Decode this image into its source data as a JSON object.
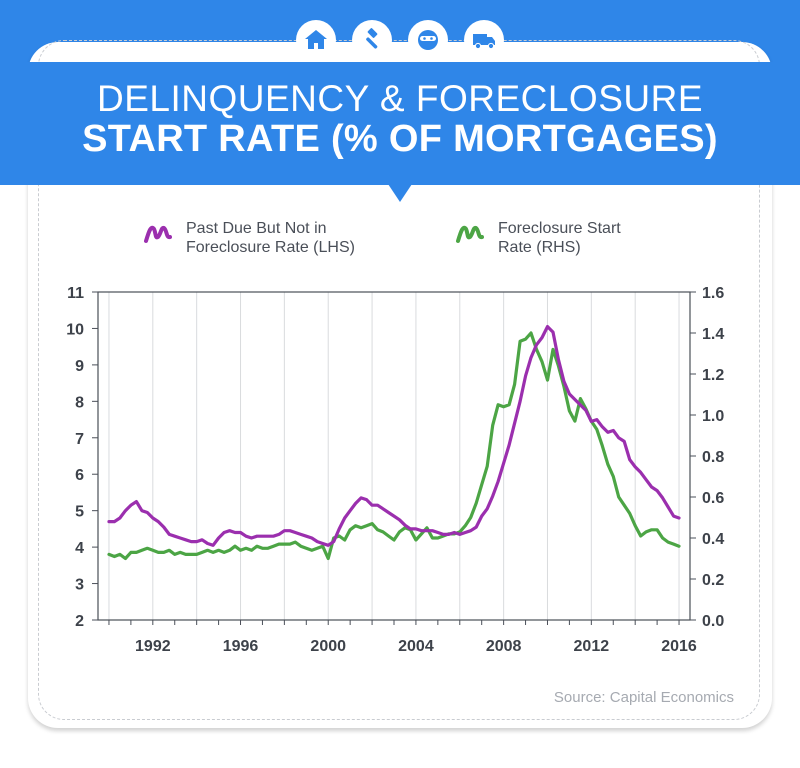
{
  "header": {
    "title_line1": "DELINQUENCY & FORECLOSURE",
    "title_line2": "START RATE (% OF MORTGAGES)",
    "icons": [
      "house-icon",
      "gavel-icon",
      "robber-mask-icon",
      "moving-truck-icon"
    ],
    "background_color": "#2f86e8"
  },
  "legend": {
    "past_due_label": "Past Due But Not in Foreclosure Rate (LHS)",
    "foreclosure_label": "Foreclosure Start Rate (RHS)"
  },
  "source": "Source: Capital Economics",
  "chart_data": {
    "type": "line",
    "title": "DELINQUENCY & FORECLOSURE START RATE (% OF MORTGAGES)",
    "x_range": [
      1989.5,
      2016.5
    ],
    "x_ticks": [
      "1992",
      "1996",
      "2000",
      "2004",
      "2008",
      "2012",
      "2016"
    ],
    "y_left": {
      "range": [
        2,
        11
      ],
      "ticks": [
        "2",
        "3",
        "4",
        "5",
        "6",
        "7",
        "8",
        "9",
        "10",
        "11"
      ]
    },
    "y_right": {
      "range": [
        0,
        1.6
      ],
      "ticks": [
        "0.0",
        "0.2",
        "0.4",
        "0.6",
        "0.8",
        "1.0",
        "1.2",
        "1.4",
        "1.6"
      ]
    },
    "grid": "vertical",
    "legend_position": "top",
    "series": [
      {
        "name": "Past Due But Not in Foreclosure Rate (LHS)",
        "axis": "left",
        "color": "#9b2fae",
        "x": [
          1990.0,
          1990.25,
          1990.5,
          1990.75,
          1991.0,
          1991.25,
          1991.5,
          1991.75,
          1992.0,
          1992.25,
          1992.5,
          1992.75,
          1993.0,
          1993.25,
          1993.5,
          1993.75,
          1994.0,
          1994.25,
          1994.5,
          1994.75,
          1995.0,
          1995.25,
          1995.5,
          1995.75,
          1996.0,
          1996.25,
          1996.5,
          1996.75,
          1997.0,
          1997.25,
          1997.5,
          1997.75,
          1998.0,
          1998.25,
          1998.5,
          1998.75,
          1999.0,
          1999.25,
          1999.5,
          1999.75,
          2000.0,
          2000.25,
          2000.5,
          2000.75,
          2001.0,
          2001.25,
          2001.5,
          2001.75,
          2002.0,
          2002.25,
          2002.5,
          2002.75,
          2003.0,
          2003.25,
          2003.5,
          2003.75,
          2004.0,
          2004.25,
          2004.5,
          2004.75,
          2005.0,
          2005.25,
          2005.5,
          2005.75,
          2006.0,
          2006.25,
          2006.5,
          2006.75,
          2007.0,
          2007.25,
          2007.5,
          2007.75,
          2008.0,
          2008.25,
          2008.5,
          2008.75,
          2009.0,
          2009.25,
          2009.5,
          2009.75,
          2010.0,
          2010.25,
          2010.5,
          2010.75,
          2011.0,
          2011.25,
          2011.5,
          2011.75,
          2012.0,
          2012.25,
          2012.5,
          2012.75,
          2013.0,
          2013.25,
          2013.5,
          2013.75,
          2014.0,
          2014.25,
          2014.5,
          2014.75,
          2015.0,
          2015.25,
          2015.5,
          2015.75,
          2016.0
        ],
        "values": [
          4.7,
          4.7,
          4.8,
          5.0,
          5.15,
          5.25,
          5.0,
          4.95,
          4.8,
          4.7,
          4.55,
          4.35,
          4.3,
          4.25,
          4.2,
          4.15,
          4.15,
          4.2,
          4.1,
          4.05,
          4.25,
          4.4,
          4.45,
          4.4,
          4.4,
          4.3,
          4.25,
          4.3,
          4.3,
          4.3,
          4.3,
          4.35,
          4.45,
          4.45,
          4.4,
          4.35,
          4.3,
          4.25,
          4.15,
          4.1,
          4.05,
          4.15,
          4.5,
          4.8,
          5.0,
          5.2,
          5.35,
          5.3,
          5.15,
          5.15,
          5.05,
          4.95,
          4.85,
          4.75,
          4.6,
          4.5,
          4.5,
          4.45,
          4.45,
          4.45,
          4.4,
          4.35,
          4.35,
          4.4,
          4.35,
          4.4,
          4.45,
          4.55,
          4.85,
          5.05,
          5.4,
          5.8,
          6.3,
          6.8,
          7.4,
          8.0,
          8.7,
          9.2,
          9.55,
          9.75,
          10.05,
          9.9,
          9.15,
          8.55,
          8.2,
          8.05,
          7.9,
          7.75,
          7.45,
          7.5,
          7.3,
          7.15,
          7.2,
          7.0,
          6.9,
          6.4,
          6.2,
          6.05,
          5.85,
          5.65,
          5.55,
          5.35,
          5.1,
          4.85,
          4.8
        ]
      },
      {
        "name": "Foreclosure Start Rate (RHS)",
        "axis": "right",
        "color": "#4ca545",
        "x": [
          1990.0,
          1990.25,
          1990.5,
          1990.75,
          1991.0,
          1991.25,
          1991.5,
          1991.75,
          1992.0,
          1992.25,
          1992.5,
          1992.75,
          1993.0,
          1993.25,
          1993.5,
          1993.75,
          1994.0,
          1994.25,
          1994.5,
          1994.75,
          1995.0,
          1995.25,
          1995.5,
          1995.75,
          1996.0,
          1996.25,
          1996.5,
          1996.75,
          1997.0,
          1997.25,
          1997.5,
          1997.75,
          1998.0,
          1998.25,
          1998.5,
          1998.75,
          1999.0,
          1999.25,
          1999.5,
          1999.75,
          2000.0,
          2000.25,
          2000.5,
          2000.75,
          2001.0,
          2001.25,
          2001.5,
          2001.75,
          2002.0,
          2002.25,
          2002.5,
          2002.75,
          2003.0,
          2003.25,
          2003.5,
          2003.75,
          2004.0,
          2004.25,
          2004.5,
          2004.75,
          2005.0,
          2005.25,
          2005.5,
          2005.75,
          2006.0,
          2006.25,
          2006.5,
          2006.75,
          2007.0,
          2007.25,
          2007.5,
          2007.75,
          2008.0,
          2008.25,
          2008.5,
          2008.75,
          2009.0,
          2009.25,
          2009.5,
          2009.75,
          2010.0,
          2010.25,
          2010.5,
          2010.75,
          2011.0,
          2011.25,
          2011.5,
          2011.75,
          2012.0,
          2012.25,
          2012.5,
          2012.75,
          2013.0,
          2013.25,
          2013.5,
          2013.75,
          2014.0,
          2014.25,
          2014.5,
          2014.75,
          2015.0,
          2015.25,
          2015.5,
          2015.75,
          2016.0
        ],
        "values": [
          0.32,
          0.31,
          0.32,
          0.3,
          0.33,
          0.33,
          0.34,
          0.35,
          0.34,
          0.33,
          0.33,
          0.34,
          0.32,
          0.33,
          0.32,
          0.32,
          0.32,
          0.33,
          0.34,
          0.33,
          0.34,
          0.33,
          0.34,
          0.36,
          0.34,
          0.35,
          0.34,
          0.36,
          0.35,
          0.35,
          0.36,
          0.37,
          0.37,
          0.37,
          0.38,
          0.36,
          0.35,
          0.34,
          0.35,
          0.36,
          0.3,
          0.4,
          0.41,
          0.39,
          0.44,
          0.46,
          0.45,
          0.46,
          0.47,
          0.44,
          0.43,
          0.41,
          0.39,
          0.43,
          0.45,
          0.44,
          0.39,
          0.42,
          0.45,
          0.4,
          0.4,
          0.41,
          0.42,
          0.42,
          0.43,
          0.46,
          0.5,
          0.57,
          0.66,
          0.75,
          0.95,
          1.05,
          1.04,
          1.05,
          1.15,
          1.36,
          1.37,
          1.4,
          1.32,
          1.26,
          1.17,
          1.32,
          1.24,
          1.14,
          1.02,
          0.97,
          1.08,
          1.03,
          0.97,
          0.93,
          0.85,
          0.76,
          0.7,
          0.6,
          0.56,
          0.52,
          0.46,
          0.41,
          0.43,
          0.44,
          0.44,
          0.4,
          0.38,
          0.37,
          0.36
        ]
      }
    ]
  }
}
